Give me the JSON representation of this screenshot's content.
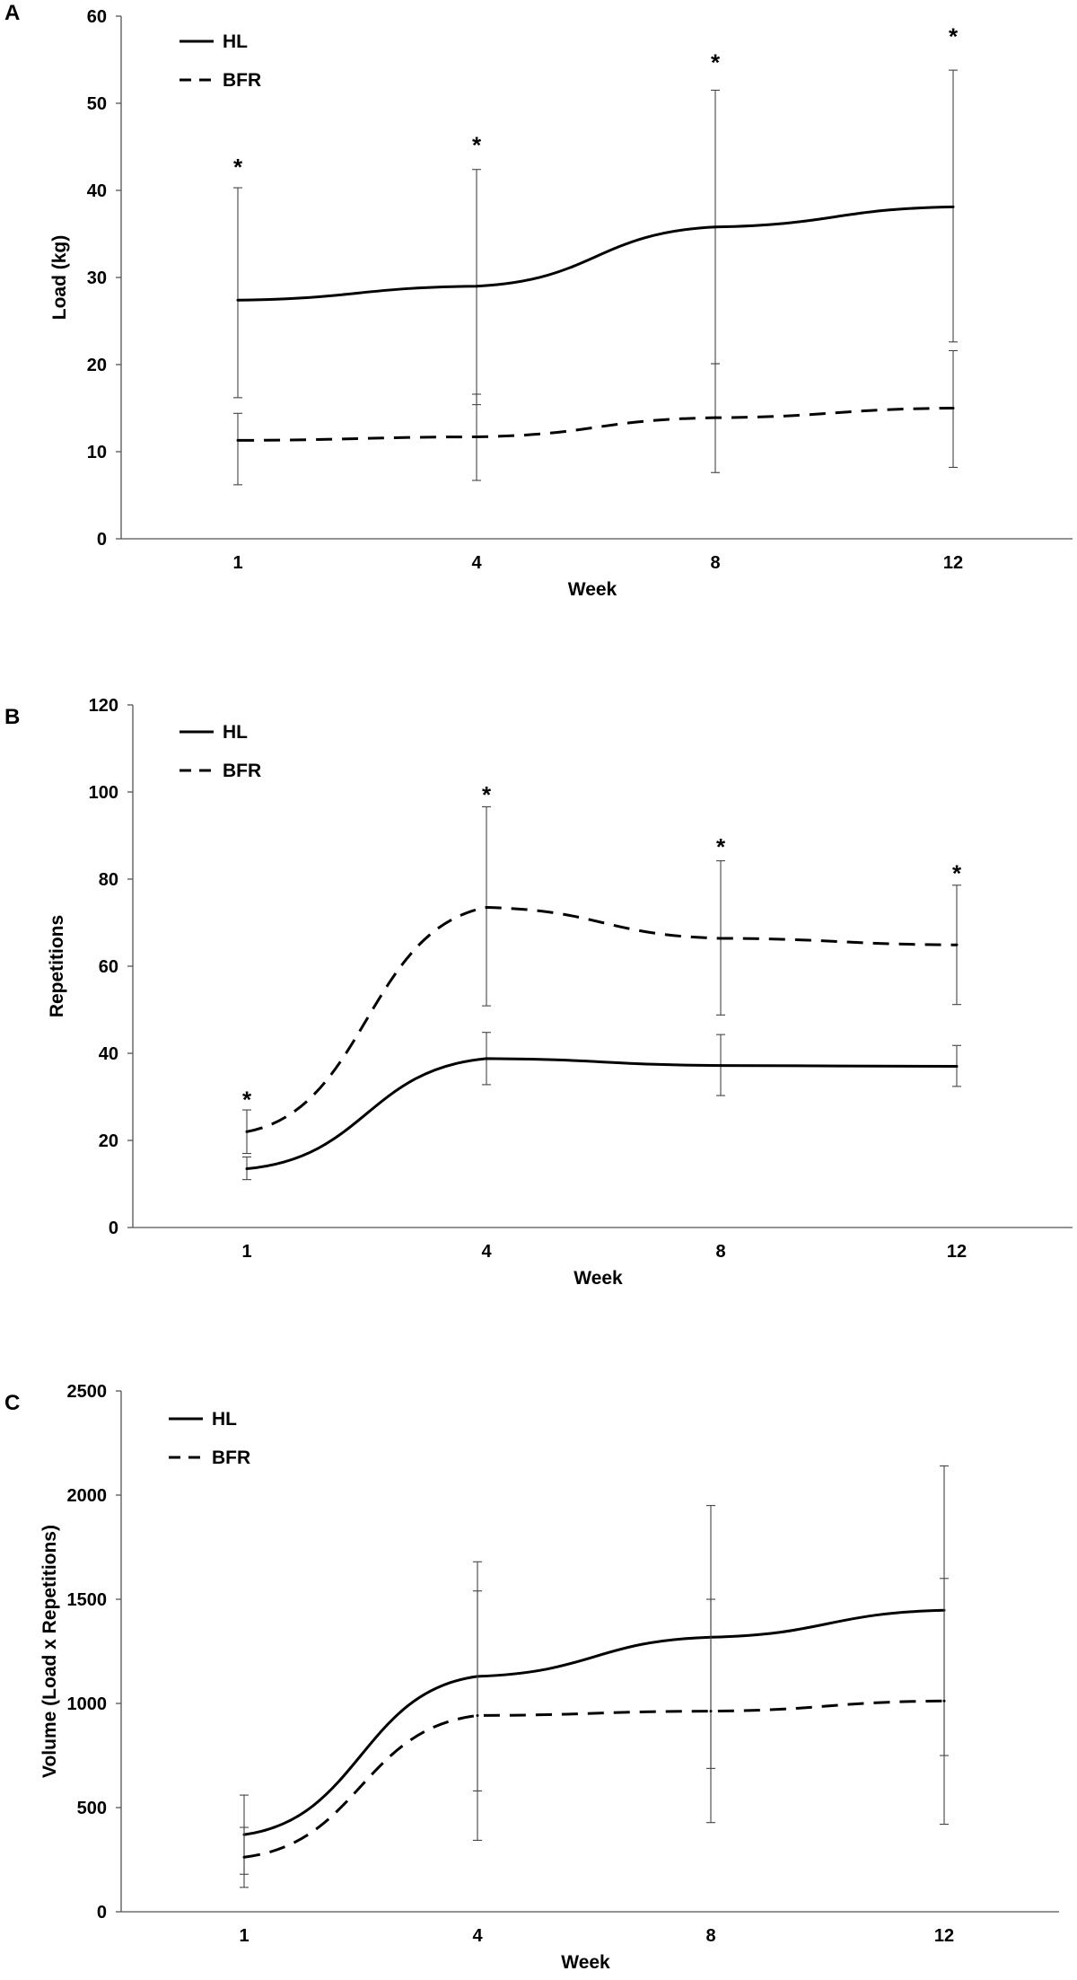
{
  "chart_data": [
    {
      "type": "line",
      "panel": "A",
      "categories": [
        "1",
        "4",
        "8",
        "12"
      ],
      "xlabel": "Week",
      "ylabel": "Load (kg)",
      "ylim": [
        0,
        60
      ],
      "yticks": [
        0,
        10,
        20,
        30,
        40,
        50,
        60
      ],
      "legend_placement": "top-left",
      "grid": false,
      "series": [
        {
          "name": "HL",
          "style": "solid",
          "values": [
            27.4,
            29.0,
            35.8,
            38.1
          ],
          "err_low": [
            16.2,
            15.4,
            20.1,
            22.6
          ],
          "err_high": [
            40.3,
            42.4,
            51.5,
            53.8
          ]
        },
        {
          "name": "BFR",
          "style": "dashed",
          "values": [
            11.3,
            11.7,
            13.9,
            15.0
          ],
          "err_low": [
            6.2,
            6.7,
            7.6,
            8.2
          ],
          "err_high": [
            14.4,
            16.6,
            20.1,
            21.6
          ]
        }
      ],
      "significance": [
        "*",
        "*",
        "*",
        "*"
      ],
      "significance_y": [
        43,
        45.5,
        55,
        58
      ]
    },
    {
      "type": "line",
      "panel": "B",
      "categories": [
        "1",
        "4",
        "8",
        "12"
      ],
      "xlabel": "Week",
      "ylabel": "Repetitions",
      "ylim": [
        0,
        120
      ],
      "yticks": [
        0,
        20,
        40,
        60,
        80,
        100,
        120
      ],
      "legend_placement": "top-left",
      "grid": false,
      "series": [
        {
          "name": "HL",
          "style": "solid",
          "values": [
            13.5,
            38.8,
            37.2,
            37.0
          ],
          "err_low": [
            11.0,
            32.8,
            30.3,
            32.4
          ],
          "err_high": [
            16.2,
            44.8,
            44.3,
            41.8
          ]
        },
        {
          "name": "BFR",
          "style": "dashed",
          "values": [
            22.0,
            73.5,
            66.4,
            64.9
          ],
          "err_low": [
            17.0,
            50.9,
            48.8,
            51.2
          ],
          "err_high": [
            27.0,
            96.6,
            84.2,
            78.6
          ]
        }
      ],
      "significance": [
        "*",
        "*",
        "*",
        "*"
      ],
      "significance_y": [
        30,
        100,
        88,
        82
      ]
    },
    {
      "type": "line",
      "panel": "C",
      "categories": [
        "1",
        "4",
        "8",
        "12"
      ],
      "xlabel": "Week",
      "ylabel": "Volume (Load x Repetitions)",
      "ylim": [
        0,
        2500
      ],
      "yticks": [
        0,
        500,
        1000,
        1500,
        2000,
        2500
      ],
      "legend_placement": "top-left",
      "grid": false,
      "series": [
        {
          "name": "HL",
          "style": "solid",
          "values": [
            370,
            1130,
            1318,
            1447
          ],
          "err_low": [
            180,
            580,
            688,
            750
          ],
          "err_high": [
            560,
            1680,
            1950,
            2140
          ]
        },
        {
          "name": "BFR",
          "style": "dashed",
          "values": [
            262,
            942,
            963,
            1012
          ],
          "err_low": [
            117,
            343,
            428,
            420
          ],
          "err_high": [
            405,
            1540,
            1500,
            1600
          ]
        }
      ],
      "significance": [
        "",
        "",
        "",
        ""
      ],
      "significance_y": [
        0,
        0,
        0,
        0
      ]
    }
  ]
}
